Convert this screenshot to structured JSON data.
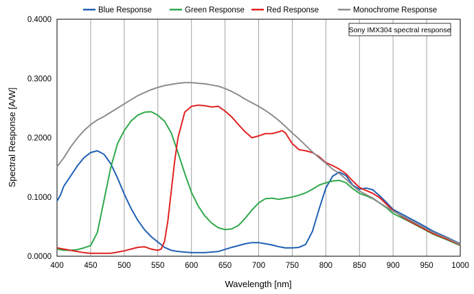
{
  "chart_data": {
    "type": "line",
    "title": "",
    "annotation": "Sony IMX304 spectral response",
    "xlabel": "Wavelength [nm]",
    "ylabel": "Spectral Response [A/W]",
    "xlim": [
      400,
      1000
    ],
    "ylim": [
      0,
      0.4
    ],
    "x_ticks": [
      400,
      450,
      500,
      550,
      600,
      650,
      700,
      750,
      800,
      850,
      900,
      950,
      1000
    ],
    "y_ticks": [
      0,
      0.1,
      0.2,
      0.3,
      0.4
    ],
    "x_tick_labels": [
      "400",
      "450",
      "500",
      "550",
      "600",
      "650",
      "700",
      "750",
      "800",
      "850",
      "900",
      "950",
      "1000"
    ],
    "y_tick_labels": [
      "0.0000",
      "0.1000",
      "0.2000",
      "0.3000",
      "0.4000"
    ],
    "grid": "vertical",
    "legend": "top",
    "series": [
      {
        "name": "Blue Response",
        "color": "#1f5fb4",
        "x": [
          400,
          405,
          410,
          420,
          430,
          440,
          450,
          460,
          470,
          480,
          490,
          500,
          510,
          520,
          530,
          540,
          550,
          560,
          570,
          580,
          600,
          620,
          640,
          660,
          680,
          690,
          700,
          710,
          720,
          730,
          740,
          750,
          760,
          770,
          780,
          790,
          800,
          810,
          820,
          830,
          840,
          850,
          860,
          870,
          880,
          890,
          900,
          920,
          940,
          960,
          980,
          1000
        ],
        "y": [
          0.093,
          0.103,
          0.118,
          0.135,
          0.152,
          0.166,
          0.175,
          0.178,
          0.172,
          0.156,
          0.132,
          0.105,
          0.081,
          0.061,
          0.045,
          0.033,
          0.024,
          0.015,
          0.01,
          0.008,
          0.006,
          0.006,
          0.008,
          0.015,
          0.021,
          0.023,
          0.023,
          0.021,
          0.019,
          0.016,
          0.014,
          0.014,
          0.015,
          0.02,
          0.042,
          0.08,
          0.115,
          0.135,
          0.142,
          0.136,
          0.12,
          0.113,
          0.115,
          0.112,
          0.102,
          0.091,
          0.079,
          0.067,
          0.055,
          0.042,
          0.032,
          0.021
        ]
      },
      {
        "name": "Green Response",
        "color": "#2ea84a",
        "x": [
          400,
          410,
          420,
          430,
          440,
          450,
          460,
          470,
          480,
          490,
          500,
          510,
          520,
          530,
          540,
          550,
          560,
          570,
          580,
          590,
          600,
          610,
          620,
          630,
          640,
          650,
          660,
          670,
          680,
          690,
          700,
          710,
          720,
          730,
          740,
          750,
          760,
          770,
          780,
          790,
          800,
          810,
          820,
          830,
          840,
          850,
          860,
          870,
          880,
          890,
          900,
          920,
          940,
          960,
          980,
          1000
        ],
        "y": [
          0.012,
          0.01,
          0.01,
          0.011,
          0.014,
          0.018,
          0.04,
          0.095,
          0.15,
          0.19,
          0.212,
          0.228,
          0.238,
          0.243,
          0.244,
          0.238,
          0.228,
          0.208,
          0.175,
          0.14,
          0.108,
          0.085,
          0.068,
          0.056,
          0.048,
          0.045,
          0.046,
          0.052,
          0.064,
          0.078,
          0.09,
          0.097,
          0.098,
          0.096,
          0.098,
          0.1,
          0.103,
          0.107,
          0.113,
          0.12,
          0.124,
          0.127,
          0.128,
          0.124,
          0.114,
          0.106,
          0.102,
          0.097,
          0.09,
          0.082,
          0.072,
          0.061,
          0.049,
          0.037,
          0.028,
          0.018
        ]
      },
      {
        "name": "Red Response",
        "color": "#e02020",
        "x": [
          400,
          410,
          420,
          430,
          440,
          450,
          460,
          470,
          480,
          490,
          500,
          510,
          520,
          530,
          540,
          550,
          555,
          560,
          565,
          570,
          575,
          580,
          590,
          600,
          610,
          620,
          630,
          640,
          650,
          660,
          670,
          680,
          690,
          700,
          710,
          720,
          730,
          735,
          740,
          750,
          760,
          770,
          780,
          790,
          800,
          810,
          820,
          830,
          840,
          850,
          860,
          870,
          880,
          890,
          900,
          920,
          940,
          960,
          980,
          1000
        ],
        "y": [
          0.014,
          0.012,
          0.01,
          0.008,
          0.006,
          0.005,
          0.005,
          0.005,
          0.005,
          0.007,
          0.009,
          0.012,
          0.015,
          0.016,
          0.012,
          0.01,
          0.012,
          0.025,
          0.06,
          0.11,
          0.16,
          0.2,
          0.243,
          0.253,
          0.255,
          0.254,
          0.252,
          0.253,
          0.245,
          0.235,
          0.222,
          0.21,
          0.2,
          0.203,
          0.207,
          0.207,
          0.21,
          0.212,
          0.208,
          0.19,
          0.18,
          0.178,
          0.175,
          0.168,
          0.158,
          0.153,
          0.147,
          0.139,
          0.127,
          0.116,
          0.111,
          0.106,
          0.099,
          0.088,
          0.077,
          0.062,
          0.05,
          0.038,
          0.029,
          0.019
        ]
      },
      {
        "name": "Monochrome Response",
        "color": "#8c8c8c",
        "x": [
          400,
          410,
          420,
          430,
          440,
          450,
          460,
          470,
          480,
          490,
          500,
          510,
          520,
          530,
          540,
          550,
          560,
          570,
          580,
          590,
          600,
          610,
          620,
          630,
          640,
          650,
          660,
          670,
          680,
          690,
          700,
          710,
          720,
          730,
          740,
          750,
          760,
          770,
          780,
          790,
          800,
          810,
          820,
          830,
          840,
          850,
          860,
          870,
          880,
          890,
          900,
          920,
          940,
          960,
          980,
          1000
        ],
        "y": [
          0.151,
          0.166,
          0.184,
          0.199,
          0.212,
          0.222,
          0.23,
          0.236,
          0.243,
          0.25,
          0.257,
          0.264,
          0.271,
          0.276,
          0.281,
          0.285,
          0.288,
          0.29,
          0.292,
          0.293,
          0.293,
          0.292,
          0.291,
          0.289,
          0.287,
          0.283,
          0.278,
          0.272,
          0.265,
          0.259,
          0.253,
          0.246,
          0.238,
          0.229,
          0.219,
          0.208,
          0.198,
          0.187,
          0.176,
          0.166,
          0.157,
          0.147,
          0.14,
          0.13,
          0.119,
          0.11,
          0.104,
          0.098,
          0.09,
          0.083,
          0.076,
          0.064,
          0.052,
          0.04,
          0.031,
          0.02
        ]
      }
    ]
  }
}
